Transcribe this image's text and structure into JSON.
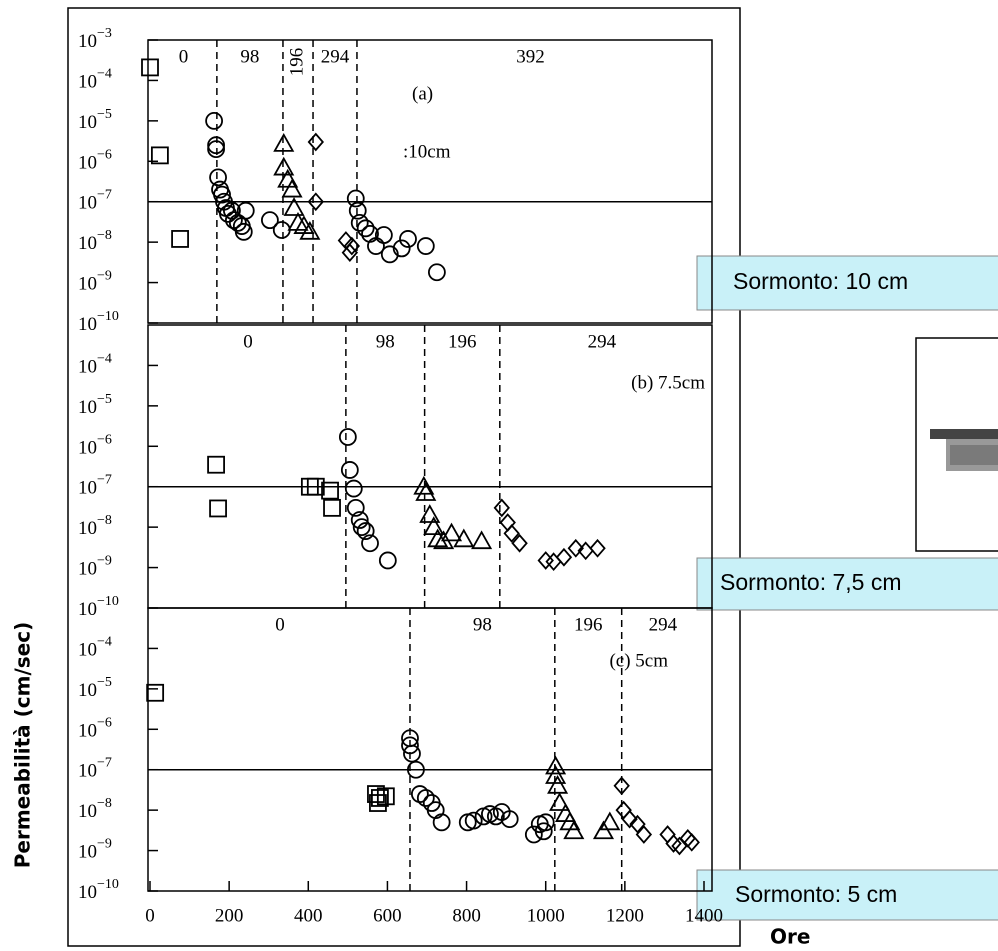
{
  "y_axis_label": "Permeabilità (cm/sec)",
  "x_axis_label": "Ore",
  "callouts": [
    "Sormonto: 10 cm",
    "Sormonto: 7,5 cm",
    "Sormonto: 5 cm"
  ],
  "chart_data": [
    {
      "type": "scatter",
      "annotations": [
        "(a)",
        ":10cm"
      ],
      "xlim": [
        0,
        1400
      ],
      "ylim": [
        1e-10,
        0.001
      ],
      "log_y": true,
      "reference_line": 1e-07,
      "yticks": [
        {
          "value": 0.001,
          "label": "10−3"
        },
        {
          "value": 0.0001,
          "label": "10−4"
        },
        {
          "value": 1e-05,
          "label": "10−5"
        },
        {
          "value": 1e-06,
          "label": "10−6"
        },
        {
          "value": 1e-07,
          "label": "10−7"
        },
        {
          "value": 1e-08,
          "label": "10−8"
        },
        {
          "value": 1e-09,
          "label": "10−9"
        },
        {
          "value": 1e-10,
          "label": "10−10"
        }
      ],
      "stages": [
        "0",
        "98",
        "196",
        "294",
        "392"
      ],
      "dividers": [
        169,
        336,
        412,
        523
      ],
      "series": [
        {
          "marker": "square",
          "color": "#000000",
          "x": [
            0,
            25,
            76
          ],
          "values": [
            0.00021,
            1.4e-06,
            1.2e-08
          ]
        },
        {
          "marker": "circle",
          "color": "#000000",
          "x": [
            162,
            167,
            167,
            172,
            177,
            182,
            187,
            192,
            197,
            207,
            212,
            222,
            232,
            237,
            242,
            303,
            333,
            520,
            525,
            530,
            545,
            556,
            571,
            591,
            606,
            636,
            652,
            697,
            725
          ],
          "values": [
            1e-05,
            2.5e-06,
            2e-06,
            4e-07,
            2e-07,
            1.5e-07,
            1e-07,
            7e-08,
            5e-08,
            6e-08,
            3.5e-08,
            3e-08,
            2.5e-08,
            1.8e-08,
            6e-08,
            3.5e-08,
            2e-08,
            1.2e-07,
            6e-08,
            3e-08,
            2.2e-08,
            1.6e-08,
            8e-09,
            1.5e-08,
            5e-09,
            7e-09,
            1.2e-08,
            8e-09,
            1.8e-09
          ]
        },
        {
          "marker": "triangle",
          "color": "#000000",
          "x": [
            338,
            338,
            348,
            359,
            364,
            374,
            389,
            404
          ],
          "values": [
            2.7e-06,
            7e-07,
            3.5e-07,
            2e-07,
            7e-08,
            3e-08,
            2.5e-08,
            1.8e-08
          ]
        },
        {
          "marker": "diamond",
          "color": "#000000",
          "x": [
            419,
            419,
            495,
            505,
            510
          ],
          "values": [
            3e-06,
            1e-07,
            1.1e-08,
            5.5e-09,
            8e-09
          ]
        }
      ]
    },
    {
      "type": "scatter",
      "annotations": [
        "(b) 7.5cm"
      ],
      "xlim": [
        0,
        1400
      ],
      "ylim": [
        1e-10,
        0.001
      ],
      "log_y": true,
      "reference_line": 1e-07,
      "yticks": [
        {
          "value": 0.0001,
          "label": "10−4"
        },
        {
          "value": 1e-05,
          "label": "10−5"
        },
        {
          "value": 1e-06,
          "label": "10−6"
        },
        {
          "value": 1e-07,
          "label": "10−7"
        },
        {
          "value": 1e-08,
          "label": "10−8"
        },
        {
          "value": 1e-09,
          "label": "10−9"
        },
        {
          "value": 1e-10,
          "label": "10−10"
        }
      ],
      "stages": [
        "0",
        "98",
        "196",
        "294"
      ],
      "dividers": [
        495,
        694,
        884
      ],
      "series": [
        {
          "marker": "square",
          "color": "#000000",
          "x": [
            167,
            172,
            404,
            419,
            455,
            460
          ],
          "values": [
            3.5e-07,
            2.9e-08,
            1e-07,
            1e-07,
            8e-08,
            3e-08
          ]
        },
        {
          "marker": "circle",
          "color": "#000000",
          "x": [
            500,
            505,
            515,
            520,
            530,
            535,
            545,
            556,
            601
          ],
          "values": [
            1.7e-06,
            2.6e-07,
            9e-08,
            3e-08,
            1.5e-08,
            1e-08,
            8e-09,
            4e-09,
            1.5e-09
          ]
        },
        {
          "marker": "triangle",
          "color": "#000000",
          "x": [
            692,
            697,
            707,
            717,
            727,
            742,
            762,
            793,
            838
          ],
          "values": [
            1e-07,
            7e-08,
            2e-08,
            1e-08,
            5e-09,
            4.5e-09,
            7e-09,
            5e-09,
            4.5e-09
          ]
        },
        {
          "marker": "diamond",
          "color": "#000000",
          "x": [
            889,
            904,
            914,
            934,
            1000,
            1020,
            1046,
            1076,
            1101,
            1131
          ],
          "values": [
            3e-08,
            1.3e-08,
            7e-09,
            4e-09,
            1.5e-09,
            1.4e-09,
            1.8e-09,
            3e-09,
            2.6e-09,
            3e-09
          ]
        }
      ]
    },
    {
      "type": "scatter",
      "annotations": [
        "(c) 5cm"
      ],
      "xlim": [
        0,
        1400
      ],
      "ylim": [
        1e-10,
        0.001
      ],
      "log_y": true,
      "reference_line": 1e-07,
      "xticks": [
        0,
        200,
        400,
        600,
        800,
        1000,
        1200,
        1400
      ],
      "yticks": [
        {
          "value": 0.0001,
          "label": "10−4"
        },
        {
          "value": 1e-05,
          "label": "10−5"
        },
        {
          "value": 1e-06,
          "label": "10−6"
        },
        {
          "value": 1e-07,
          "label": "10−7"
        },
        {
          "value": 1e-08,
          "label": "10−8"
        },
        {
          "value": 1e-09,
          "label": "10−9"
        },
        {
          "value": 1e-10,
          "label": "10−10"
        }
      ],
      "stages": [
        "0",
        "98",
        "196",
        "294"
      ],
      "dividers": [
        657,
        1023,
        1192
      ],
      "series": [
        {
          "marker": "square",
          "color": "#000000",
          "x": [
            13,
            571,
            581,
            576,
            596
          ],
          "values": [
            8e-06,
            2.5e-08,
            2e-08,
            1.5e-08,
            2.2e-08
          ]
        },
        {
          "marker": "circle",
          "color": "#000000",
          "x": [
            657,
            657,
            662,
            672,
            682,
            697,
            712,
            722,
            737,
            803,
            818,
            843,
            859,
            874,
            889,
            909,
            970,
            985,
            1000,
            995
          ],
          "values": [
            6e-07,
            4e-07,
            2.5e-07,
            1e-07,
            2.5e-08,
            2e-08,
            1.5e-08,
            1e-08,
            5e-09,
            5e-09,
            5.5e-09,
            7e-09,
            8e-09,
            7e-09,
            9e-09,
            6e-09,
            2.5e-09,
            4.5e-09,
            5e-09,
            3e-09
          ]
        },
        {
          "marker": "triangle",
          "color": "#000000",
          "x": [
            1025,
            1025,
            1030,
            1035,
            1050,
            1061,
            1071,
            1146,
            1162
          ],
          "values": [
            1.2e-07,
            7e-08,
            4e-08,
            1.5e-08,
            8e-09,
            5e-09,
            3e-09,
            3e-09,
            5e-09
          ]
        },
        {
          "marker": "diamond",
          "color": "#000000",
          "x": [
            1192,
            1197,
            1212,
            1232,
            1248,
            1308,
            1323,
            1338,
            1359,
            1369
          ],
          "values": [
            4e-08,
            1e-08,
            6e-09,
            4.5e-09,
            2.5e-09,
            2.5e-09,
            1.5e-09,
            1.3e-09,
            2e-09,
            1.6e-09
          ]
        }
      ]
    }
  ]
}
